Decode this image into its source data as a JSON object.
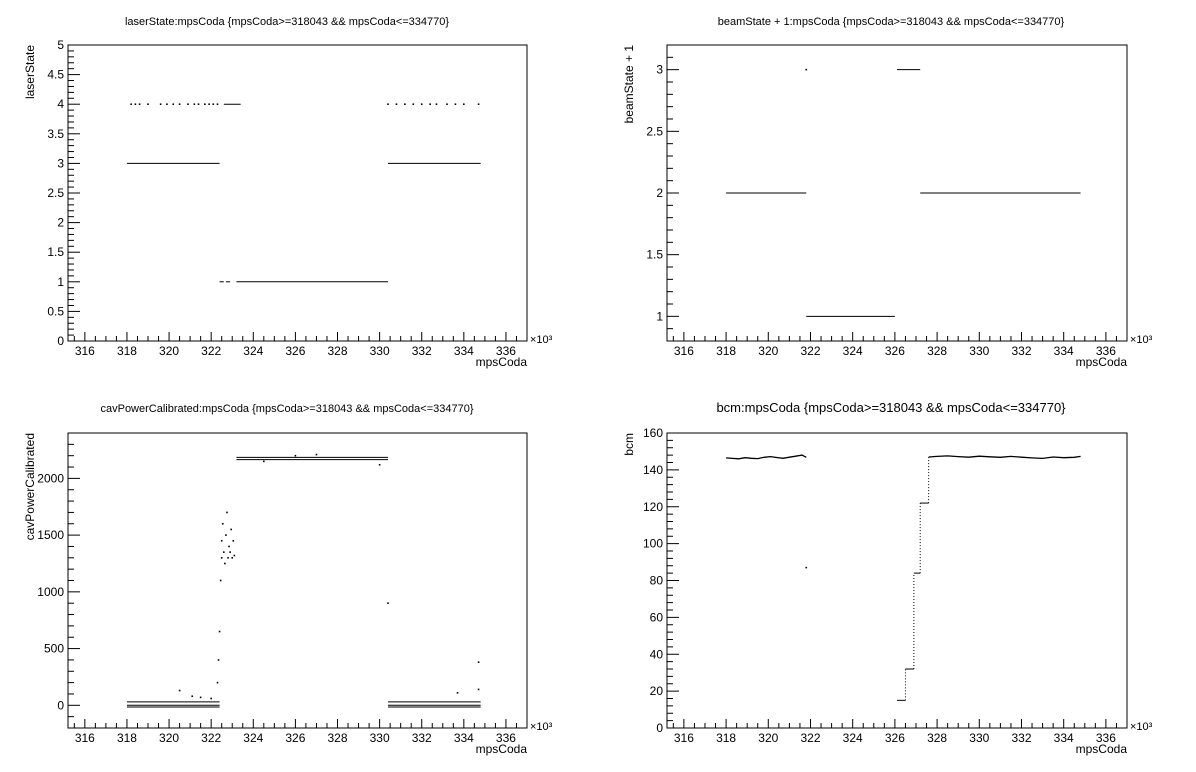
{
  "chart_data": [
    {
      "type": "scatter",
      "title": "laserState:mpsCoda {mpsCoda>=318043 && mpsCoda<=334770}",
      "xlabel": "mpsCoda",
      "ylabel": "laserState",
      "x_exponent_label": "×10³",
      "xlim": [
        315.2,
        337.0
      ],
      "ylim": [
        0,
        5
      ],
      "xticks": [
        316,
        318,
        320,
        322,
        324,
        326,
        328,
        330,
        332,
        334,
        336
      ],
      "yticks": [
        0,
        0.5,
        1,
        1.5,
        2,
        2.5,
        3,
        3.5,
        4,
        4.5,
        5
      ],
      "segments": [
        {
          "x0": 318.0,
          "x1": 322.4,
          "y": 3
        },
        {
          "x0": 322.6,
          "x1": 323.4,
          "y": 4
        },
        {
          "x0": 330.4,
          "x1": 334.8,
          "y": 3
        },
        {
          "x0": 322.4,
          "x1": 322.6,
          "y": 1
        },
        {
          "x0": 322.7,
          "x1": 322.9,
          "y": 1
        },
        {
          "x0": 323.2,
          "x1": 330.4,
          "y": 1
        }
      ],
      "points": [
        {
          "x": 318.2,
          "y": 4
        },
        {
          "x": 318.4,
          "y": 4
        },
        {
          "x": 318.6,
          "y": 4
        },
        {
          "x": 319.0,
          "y": 4
        },
        {
          "x": 319.6,
          "y": 4
        },
        {
          "x": 319.9,
          "y": 4
        },
        {
          "x": 320.2,
          "y": 4
        },
        {
          "x": 320.5,
          "y": 4
        },
        {
          "x": 320.9,
          "y": 4
        },
        {
          "x": 321.2,
          "y": 4
        },
        {
          "x": 321.4,
          "y": 4
        },
        {
          "x": 321.7,
          "y": 4
        },
        {
          "x": 321.9,
          "y": 4
        },
        {
          "x": 322.1,
          "y": 4
        },
        {
          "x": 322.3,
          "y": 4
        },
        {
          "x": 330.4,
          "y": 4
        },
        {
          "x": 330.8,
          "y": 4
        },
        {
          "x": 331.2,
          "y": 4
        },
        {
          "x": 331.6,
          "y": 4
        },
        {
          "x": 332.0,
          "y": 4
        },
        {
          "x": 332.4,
          "y": 4
        },
        {
          "x": 332.7,
          "y": 4
        },
        {
          "x": 333.2,
          "y": 4
        },
        {
          "x": 333.6,
          "y": 4
        },
        {
          "x": 334.0,
          "y": 4
        },
        {
          "x": 334.7,
          "y": 4
        }
      ]
    },
    {
      "type": "scatter",
      "title": "beamState + 1:mpsCoda {mpsCoda>=318043 && mpsCoda<=334770}",
      "xlabel": "mpsCoda",
      "ylabel": "beamState + 1",
      "x_exponent_label": "×10³",
      "xlim": [
        315.2,
        337.0
      ],
      "ylim": [
        0.8,
        3.2
      ],
      "xticks": [
        316,
        318,
        320,
        322,
        324,
        326,
        328,
        330,
        332,
        334,
        336
      ],
      "yticks": [
        1,
        1.5,
        2,
        2.5,
        3
      ],
      "segments": [
        {
          "x0": 318.0,
          "x1": 321.8,
          "y": 2
        },
        {
          "x0": 321.8,
          "x1": 326.0,
          "y": 1
        },
        {
          "x0": 326.1,
          "x1": 327.2,
          "y": 3
        },
        {
          "x0": 327.2,
          "x1": 334.8,
          "y": 2
        }
      ],
      "points": [
        {
          "x": 321.8,
          "y": 3
        }
      ]
    },
    {
      "type": "scatter",
      "title": "cavPowerCalibrated:mpsCoda {mpsCoda>=318043 && mpsCoda<=334770}",
      "xlabel": "mpsCoda",
      "ylabel": "cavPowerCalibrated",
      "x_exponent_label": "×10³",
      "xlim": [
        315.2,
        337.0
      ],
      "ylim": [
        -200,
        2400
      ],
      "xticks": [
        316,
        318,
        320,
        322,
        324,
        326,
        328,
        330,
        332,
        334,
        336
      ],
      "yticks": [
        0,
        500,
        1000,
        1500,
        2000
      ],
      "segments": [
        {
          "x0": 318.0,
          "x1": 322.4,
          "y": 30
        },
        {
          "x0": 318.0,
          "x1": 322.4,
          "y": 0
        },
        {
          "x0": 318.0,
          "x1": 322.4,
          "y": -15
        },
        {
          "x0": 323.2,
          "x1": 330.4,
          "y": 2185
        },
        {
          "x0": 323.2,
          "x1": 330.4,
          "y": 2165
        },
        {
          "x0": 330.4,
          "x1": 334.8,
          "y": 30
        },
        {
          "x0": 330.4,
          "x1": 334.8,
          "y": 0
        },
        {
          "x0": 330.4,
          "x1": 334.8,
          "y": -15
        }
      ],
      "points": [
        {
          "x": 320.5,
          "y": 130
        },
        {
          "x": 321.1,
          "y": 80
        },
        {
          "x": 321.5,
          "y": 70
        },
        {
          "x": 322.0,
          "y": 60
        },
        {
          "x": 322.3,
          "y": 200
        },
        {
          "x": 322.35,
          "y": 400
        },
        {
          "x": 322.4,
          "y": 650
        },
        {
          "x": 322.45,
          "y": 1100
        },
        {
          "x": 322.5,
          "y": 1300
        },
        {
          "x": 322.5,
          "y": 1450
        },
        {
          "x": 322.55,
          "y": 1600
        },
        {
          "x": 322.6,
          "y": 1350
        },
        {
          "x": 322.65,
          "y": 1250
        },
        {
          "x": 322.7,
          "y": 1500
        },
        {
          "x": 322.75,
          "y": 1700
        },
        {
          "x": 322.8,
          "y": 1300
        },
        {
          "x": 322.85,
          "y": 1400
        },
        {
          "x": 322.9,
          "y": 1350
        },
        {
          "x": 322.95,
          "y": 1550
        },
        {
          "x": 323.0,
          "y": 1300
        },
        {
          "x": 323.05,
          "y": 1450
        },
        {
          "x": 323.1,
          "y": 1320
        },
        {
          "x": 324.5,
          "y": 2150
        },
        {
          "x": 326.0,
          "y": 2200
        },
        {
          "x": 327.0,
          "y": 2210
        },
        {
          "x": 330.0,
          "y": 2120
        },
        {
          "x": 330.4,
          "y": 900
        },
        {
          "x": 333.7,
          "y": 110
        },
        {
          "x": 334.7,
          "y": 380
        },
        {
          "x": 334.7,
          "y": 140
        }
      ]
    },
    {
      "type": "scatter",
      "title": "bcm:mpsCoda {mpsCoda>=318043 && mpsCoda<=334770}",
      "xlabel": "mpsCoda",
      "ylabel": "bcm",
      "x_exponent_label": "×10³",
      "xlim": [
        315.2,
        337.0
      ],
      "ylim": [
        0,
        160
      ],
      "xticks": [
        316,
        318,
        320,
        322,
        324,
        326,
        328,
        330,
        332,
        334,
        336
      ],
      "yticks": [
        0,
        20,
        40,
        60,
        80,
        100,
        120,
        140,
        160
      ],
      "segments": [
        {
          "x0": 326.1,
          "x1": 326.5,
          "y": 15
        },
        {
          "x0": 326.5,
          "x1": 326.9,
          "y": 32
        },
        {
          "x0": 326.9,
          "x1": 327.2,
          "y": 84
        },
        {
          "x0": 327.2,
          "x1": 327.6,
          "y": 122
        }
      ],
      "lines": [
        {
          "x": [
            318.0,
            318.3,
            318.6,
            318.9,
            319.2,
            319.5,
            319.8,
            320.1,
            320.4,
            320.7,
            321.0,
            321.3,
            321.6,
            321.8
          ],
          "y": [
            146.5,
            146.2,
            146.0,
            146.6,
            146.3,
            146.1,
            146.8,
            147.2,
            146.7,
            146.3,
            146.9,
            147.4,
            148.0,
            146.8
          ]
        },
        {
          "x": [
            327.6,
            328.0,
            328.5,
            329.0,
            329.5,
            330.0,
            330.5,
            331.0,
            331.5,
            332.0,
            332.5,
            333.0,
            333.5,
            334.0,
            334.5,
            334.8
          ],
          "y": [
            147.0,
            147.3,
            147.6,
            147.2,
            146.9,
            147.4,
            147.1,
            146.8,
            147.3,
            146.9,
            146.5,
            146.2,
            147.0,
            146.6,
            146.8,
            147.3
          ]
        }
      ],
      "points": [
        {
          "x": 321.8,
          "y": 87
        }
      ]
    }
  ]
}
